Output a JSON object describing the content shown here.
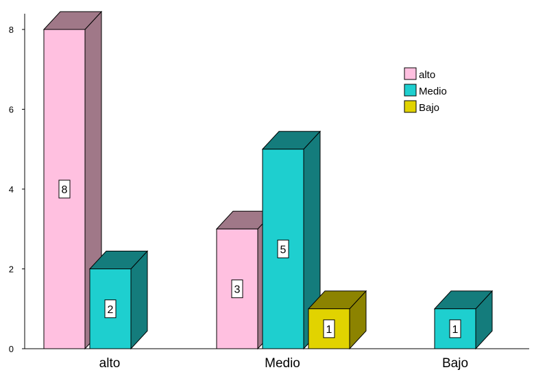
{
  "chart_data": {
    "type": "bar",
    "style": "3d-clustered",
    "categories": [
      "alto",
      "Medio",
      "Bajo"
    ],
    "series": [
      {
        "name": "alto",
        "values": [
          8,
          3,
          null
        ],
        "color": "#FFC0E0",
        "side_color": "#A07888"
      },
      {
        "name": "Medio",
        "values": [
          2,
          5,
          1
        ],
        "color": "#1ECFCF",
        "side_color": "#147C7C"
      },
      {
        "name": "Bajo",
        "values": [
          null,
          1,
          null
        ],
        "color": "#E1D300",
        "side_color": "#8C8300"
      }
    ],
    "yticks": [
      "0",
      "2",
      "4",
      "6",
      "8"
    ],
    "ylim": [
      0,
      8
    ],
    "legend": {
      "position": "top-right"
    },
    "grid": false
  }
}
